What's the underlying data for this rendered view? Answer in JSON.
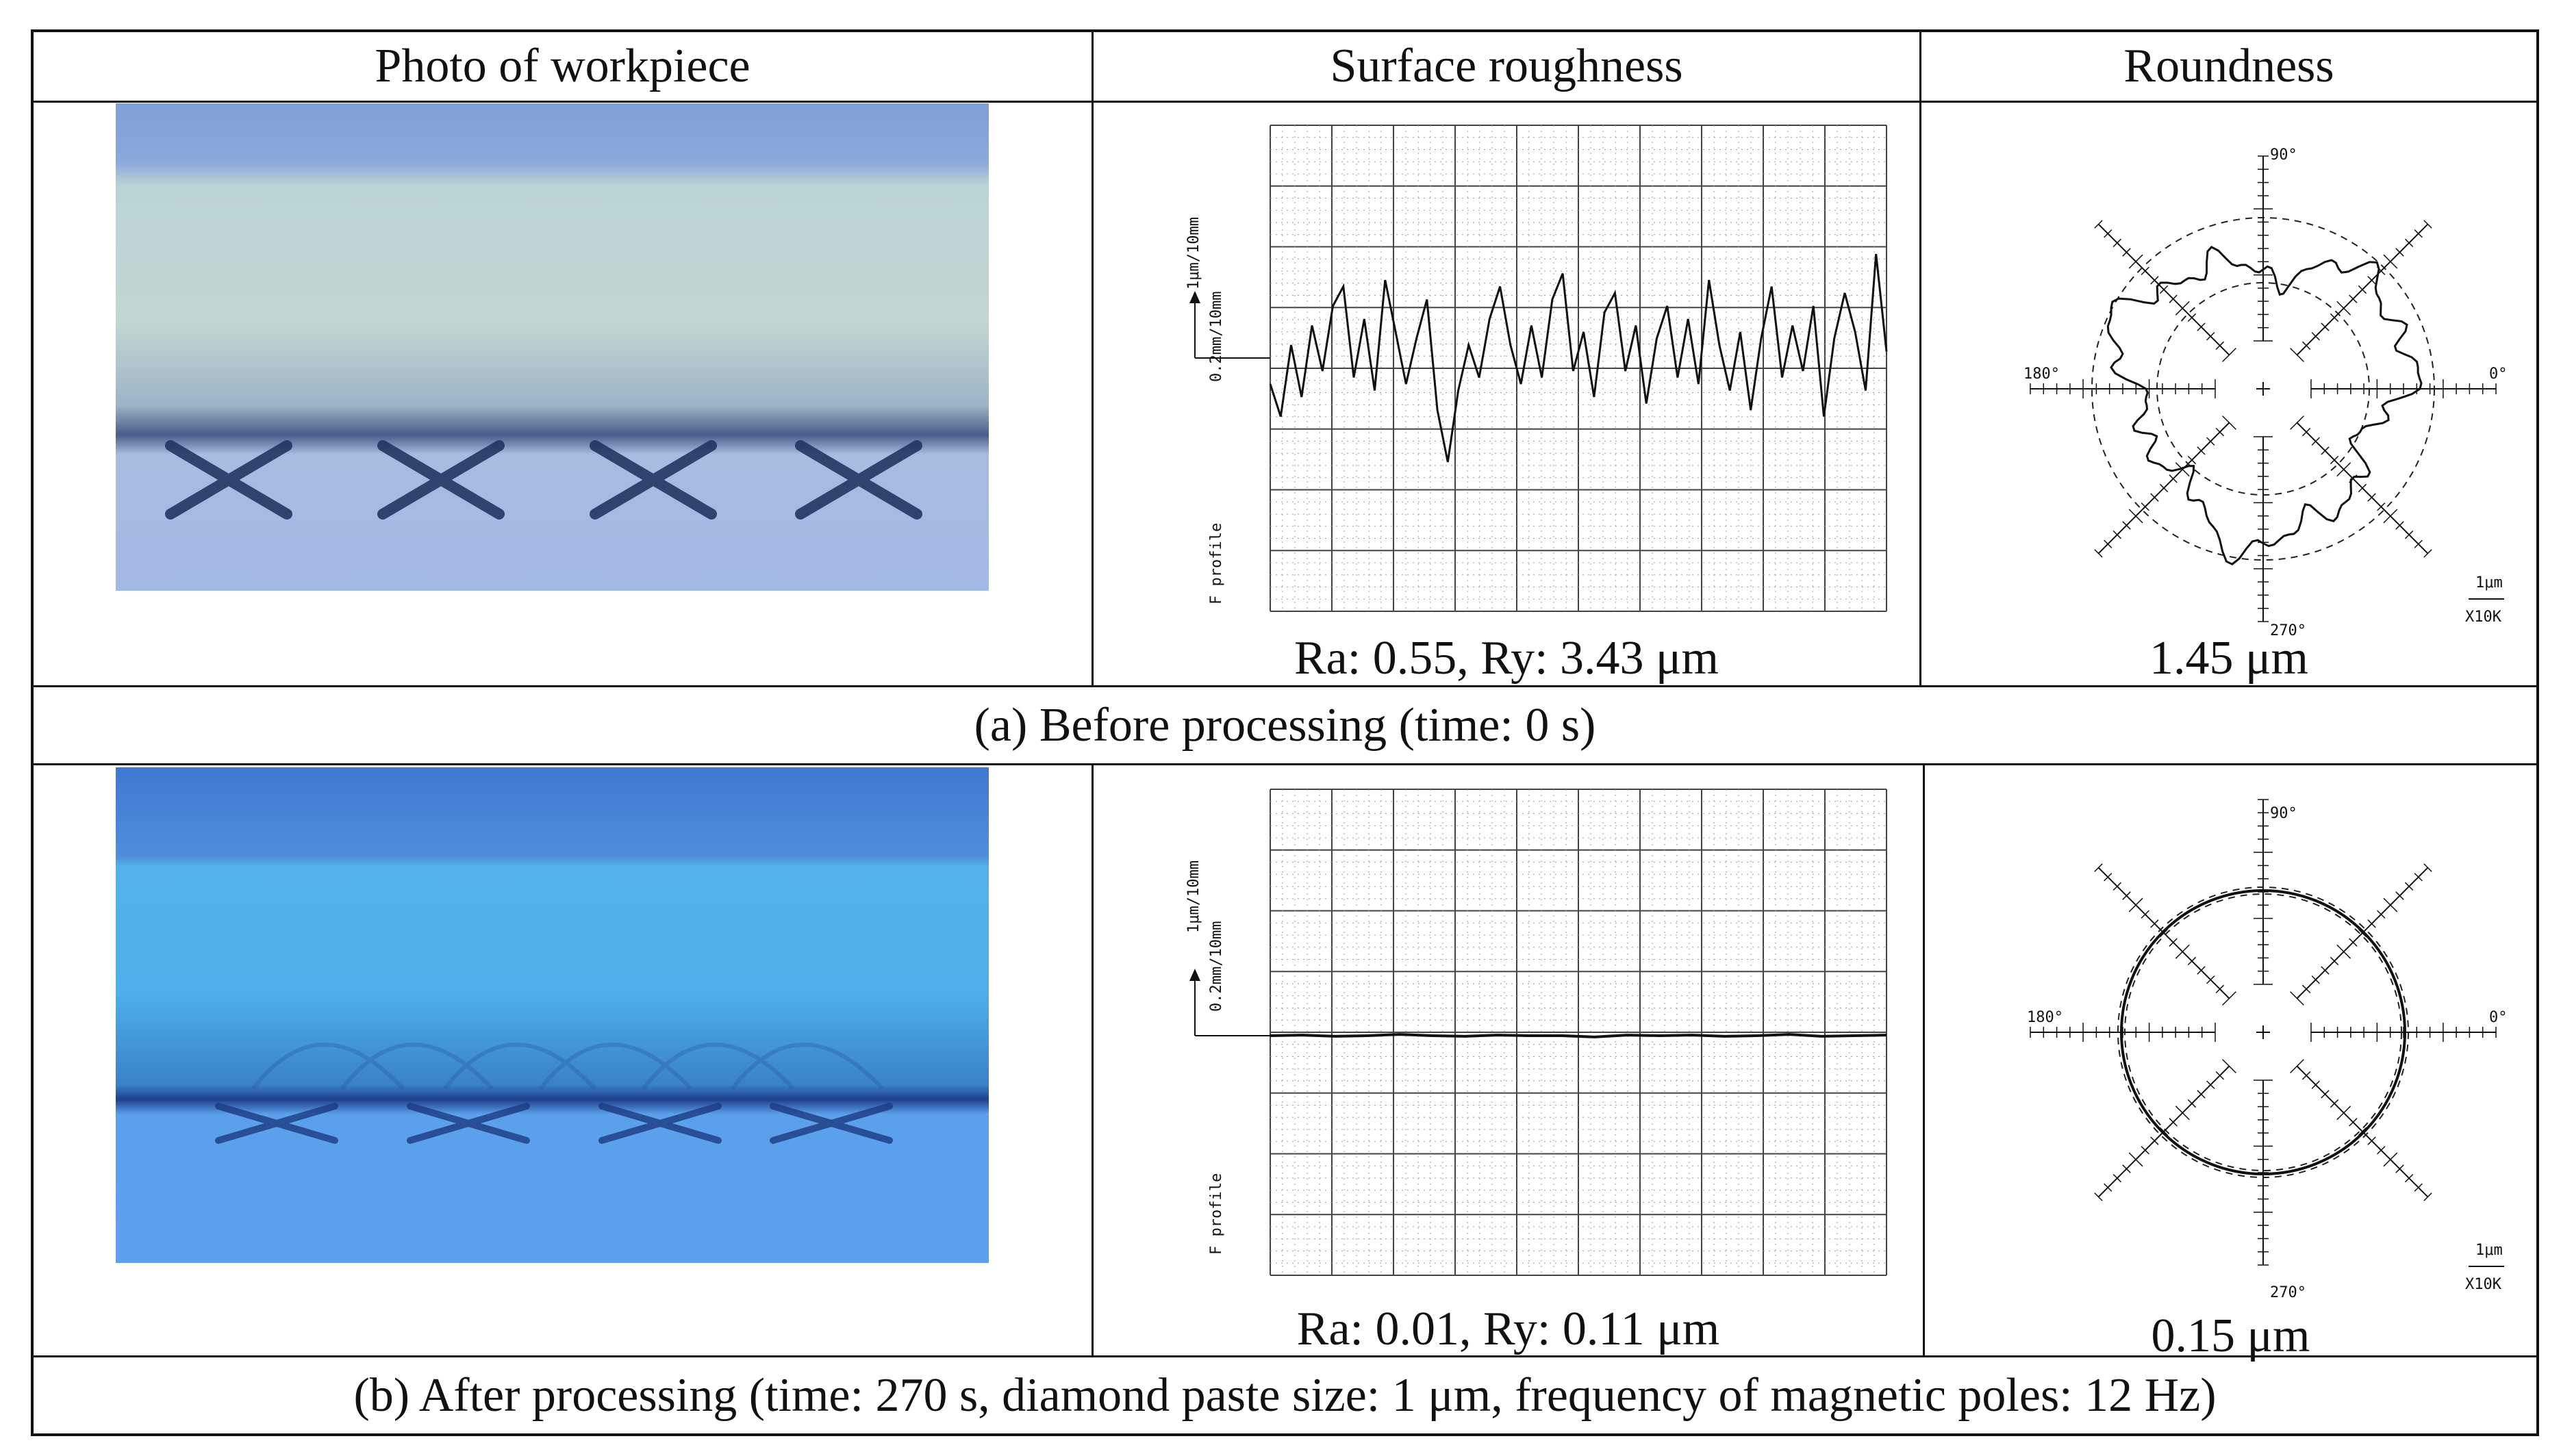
{
  "table": {
    "headers": [
      "Photo of workpiece",
      "Surface roughness",
      "Roundness"
    ],
    "rows": [
      {
        "caption": "(a) Before processing (time: 0 s)",
        "roughness_result": "Ra: 0.55, Ry: 3.43 μm",
        "roundness_result": "1.45 μm"
      },
      {
        "caption": "(b) After processing (time: 270 s, diamond paste size: 1 μm, frequency of magnetic poles: 12 Hz)",
        "roughness_result": "Ra: 0.01, Ry: 0.11 μm",
        "roundness_result": "0.15 μm"
      }
    ]
  },
  "roughness_chart": {
    "v_scale": "1μm/10mm",
    "h_scale": "0.2mm/10mm",
    "profile_label": "F profile"
  },
  "roundness_chart": {
    "angle_90": "90°",
    "angle_180": "180°",
    "angle_0": "0°",
    "angle_270": "270°",
    "scale_unit": "1μm",
    "magnification": "X10K"
  },
  "chart_data": [
    {
      "type": "line",
      "title": "Surface roughness (a) Before processing",
      "xlabel": "",
      "ylabel": "F profile",
      "x": [
        0,
        1,
        2,
        3,
        4,
        5,
        6,
        7,
        8,
        9,
        10,
        11,
        12,
        13,
        14,
        15,
        16,
        17,
        18,
        19,
        20,
        21,
        22,
        23,
        24,
        25,
        26,
        27,
        28,
        29,
        30,
        31,
        32,
        33,
        34,
        35,
        36,
        37,
        38,
        39,
        40,
        41,
        42,
        43,
        44,
        45,
        46,
        47,
        48,
        49,
        50,
        51,
        52,
        53,
        54,
        55,
        56,
        57,
        58,
        59
      ],
      "values": [
        -0.4,
        -0.9,
        0.2,
        -0.6,
        0.5,
        -0.2,
        0.8,
        1.1,
        -0.3,
        0.6,
        -0.5,
        1.2,
        0.4,
        -0.4,
        0.3,
        0.9,
        -0.8,
        -1.6,
        -0.5,
        0.2,
        -0.3,
        0.6,
        1.1,
        0.2,
        -0.4,
        0.5,
        -0.3,
        0.9,
        1.3,
        -0.2,
        0.4,
        -0.6,
        0.7,
        1.0,
        -0.2,
        0.5,
        -0.7,
        0.3,
        0.8,
        -0.3,
        0.6,
        -0.4,
        1.2,
        0.2,
        -0.5,
        0.4,
        -0.8,
        0.3,
        1.1,
        -0.3,
        0.5,
        -0.2,
        0.8,
        -0.9,
        0.3,
        1.0,
        0.4,
        -0.5,
        1.6,
        0.1
      ],
      "ylim": [
        -2,
        2
      ]
    },
    {
      "type": "line",
      "title": "Surface roughness (b) After processing",
      "xlabel": "",
      "ylabel": "F profile",
      "x": [
        0,
        1,
        2,
        3,
        4,
        5,
        6,
        7,
        8,
        9,
        10,
        11,
        12,
        13,
        14,
        15,
        16,
        17,
        18,
        19
      ],
      "values": [
        0.0,
        0.01,
        -0.01,
        0.0,
        0.02,
        0.0,
        -0.01,
        0.01,
        0.0,
        0.0,
        -0.02,
        0.01,
        0.0,
        0.01,
        -0.01,
        0.0,
        0.02,
        -0.01,
        0.0,
        0.01
      ],
      "ylim": [
        -2,
        2
      ]
    }
  ]
}
